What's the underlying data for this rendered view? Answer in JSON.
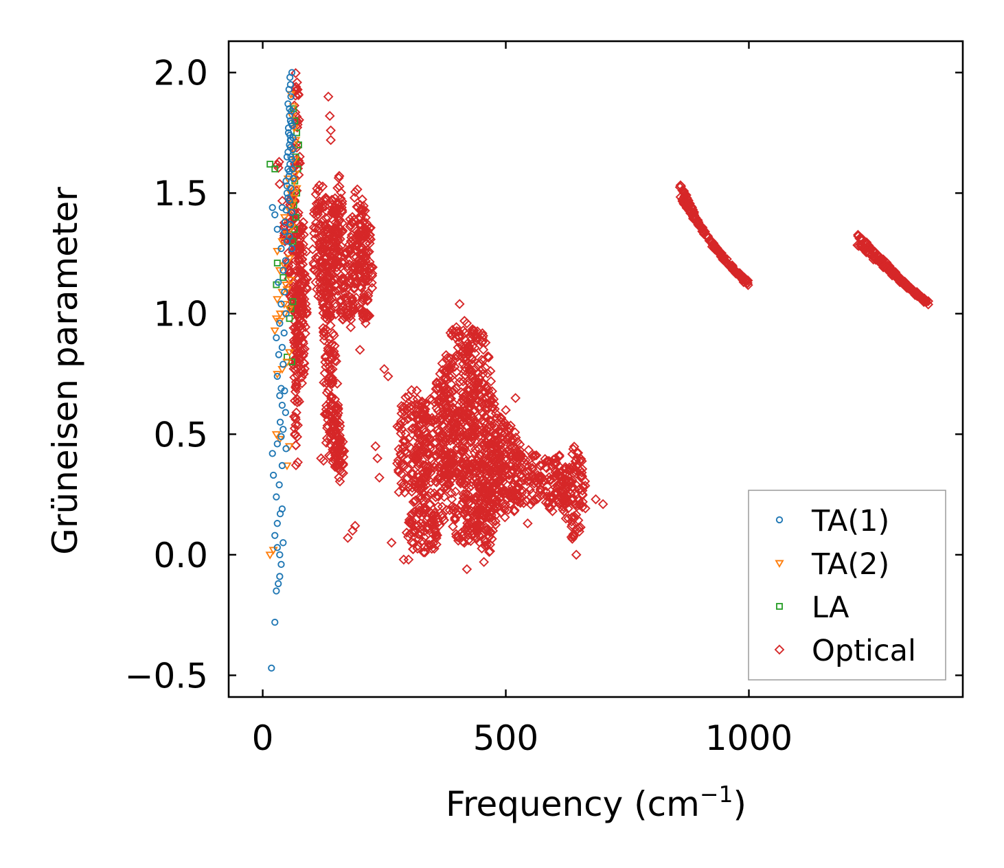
{
  "chart_data": {
    "type": "scatter",
    "title": "",
    "xlabel": "Frequency (cm",
    "xlabel_sup": "−1",
    "xlabel_close": ")",
    "ylabel": "Grüneisen parameter",
    "xlim": [
      -70,
      1440
    ],
    "ylim": [
      -0.59,
      2.13
    ],
    "xticks": [
      0,
      500,
      1000
    ],
    "xtick_labels": [
      "0",
      "500",
      "1000"
    ],
    "yticks": [
      -0.5,
      0.0,
      0.5,
      1.0,
      1.5,
      2.0
    ],
    "ytick_labels": [
      "−0.5",
      "0.0",
      "0.5",
      "1.0",
      "1.5",
      "2.0"
    ],
    "grid": false,
    "legend_position": "bottom-right",
    "series": [
      {
        "name": "TA(1)",
        "marker": "circle",
        "color": "#1f77b4",
        "points": [
          [
            18,
            -0.47
          ],
          [
            25,
            -0.28
          ],
          [
            28,
            -0.15
          ],
          [
            32,
            -0.12
          ],
          [
            35,
            -0.09
          ],
          [
            38,
            -0.04
          ],
          [
            30,
            0.03
          ],
          [
            35,
            0.0
          ],
          [
            42,
            0.05
          ],
          [
            25,
            0.08
          ],
          [
            30,
            0.13
          ],
          [
            36,
            0.17
          ],
          [
            40,
            0.19
          ],
          [
            28,
            0.24
          ],
          [
            34,
            0.29
          ],
          [
            22,
            0.33
          ],
          [
            40,
            0.37
          ],
          [
            20,
            0.42
          ],
          [
            48,
            0.44
          ],
          [
            30,
            0.46
          ],
          [
            38,
            0.49
          ],
          [
            42,
            0.52
          ],
          [
            36,
            0.55
          ],
          [
            47,
            0.59
          ],
          [
            40,
            0.62
          ],
          [
            35,
            0.66
          ],
          [
            45,
            0.68
          ],
          [
            38,
            0.69
          ],
          [
            30,
            0.74
          ],
          [
            42,
            0.79
          ],
          [
            33,
            0.83
          ],
          [
            40,
            0.86
          ],
          [
            28,
            0.9
          ],
          [
            44,
            0.92
          ],
          [
            35,
            0.96
          ],
          [
            48,
            1.0
          ],
          [
            38,
            1.04
          ],
          [
            45,
            1.09
          ],
          [
            32,
            1.13
          ],
          [
            42,
            1.18
          ],
          [
            47,
            1.22
          ],
          [
            38,
            1.27
          ],
          [
            50,
            1.3
          ],
          [
            30,
            1.35
          ],
          [
            20,
            1.44
          ],
          [
            25,
            1.41
          ],
          [
            40,
            1.44
          ],
          [
            50,
            1.5
          ],
          [
            48,
            1.55
          ],
          [
            52,
            1.6
          ],
          [
            50,
            1.65
          ],
          [
            55,
            1.7
          ],
          [
            53,
            1.75
          ],
          [
            57,
            1.8
          ],
          [
            55,
            1.85
          ],
          [
            58,
            1.9
          ],
          [
            57,
            1.95
          ],
          [
            60,
            2.0
          ],
          [
            56,
            1.98
          ],
          [
            54,
            1.93
          ],
          [
            52,
            1.87
          ],
          [
            55,
            1.82
          ],
          [
            53,
            1.77
          ],
          [
            57,
            1.72
          ],
          [
            52,
            1.67
          ],
          [
            56,
            1.62
          ],
          [
            54,
            1.57
          ],
          [
            58,
            1.52
          ],
          [
            55,
            1.47
          ],
          [
            60,
            1.42
          ],
          [
            57,
            1.37
          ],
          [
            55,
            1.32
          ],
          [
            60,
            1.27
          ],
          [
            58,
            1.72
          ],
          [
            61,
            1.78
          ],
          [
            59,
            1.84
          ],
          [
            62,
            1.68
          ],
          [
            61,
            1.6
          ],
          [
            63,
            1.56
          ],
          [
            58,
            1.65
          ],
          [
            56,
            1.74
          ],
          [
            59,
            1.79
          ],
          [
            62,
            1.73
          ],
          [
            57,
            1.69
          ],
          [
            60,
            1.64
          ],
          [
            55,
            1.59
          ],
          [
            50,
            1.53
          ],
          [
            52,
            1.48
          ],
          [
            48,
            1.43
          ],
          [
            46,
            1.38
          ],
          [
            45,
            1.34
          ]
        ]
      },
      {
        "name": "TA(2)",
        "marker": "triangle-down",
        "color": "#ff7f0e",
        "points": [
          [
            15,
            0.0
          ],
          [
            22,
            0.02
          ],
          [
            28,
            0.5
          ],
          [
            35,
            0.48
          ],
          [
            50,
            0.37
          ],
          [
            55,
            0.45
          ],
          [
            30,
            0.75
          ],
          [
            40,
            0.77
          ],
          [
            50,
            0.8
          ],
          [
            55,
            0.84
          ],
          [
            25,
            0.93
          ],
          [
            35,
            0.97
          ],
          [
            45,
            1.0
          ],
          [
            55,
            1.02
          ],
          [
            30,
            1.06
          ],
          [
            40,
            1.09
          ],
          [
            48,
            1.12
          ],
          [
            58,
            1.14
          ],
          [
            35,
            1.18
          ],
          [
            45,
            1.2
          ],
          [
            55,
            1.23
          ],
          [
            30,
            1.26
          ],
          [
            40,
            1.3
          ],
          [
            50,
            1.33
          ],
          [
            60,
            1.36
          ],
          [
            45,
            1.4
          ],
          [
            55,
            1.43
          ],
          [
            62,
            1.46
          ],
          [
            58,
            1.5
          ],
          [
            65,
            1.55
          ],
          [
            60,
            1.6
          ],
          [
            66,
            1.64
          ],
          [
            62,
            1.68
          ],
          [
            68,
            1.72
          ],
          [
            65,
            1.77
          ],
          [
            60,
            1.82
          ],
          [
            63,
            1.86
          ],
          [
            58,
            1.91
          ],
          [
            67,
            1.58
          ],
          [
            70,
            1.52
          ],
          [
            64,
            1.48
          ],
          [
            56,
            1.52
          ],
          [
            52,
            1.56
          ],
          [
            50,
            1.1
          ],
          [
            44,
            1.04
          ],
          [
            36,
            1.0
          ],
          [
            28,
            0.98
          ]
        ]
      },
      {
        "name": "LA",
        "marker": "square",
        "color": "#2ca02c",
        "points": [
          [
            15,
            1.62
          ],
          [
            25,
            1.6
          ],
          [
            30,
            1.21
          ],
          [
            28,
            1.12
          ],
          [
            42,
            1.15
          ],
          [
            60,
            0.8
          ],
          [
            50,
            0.82
          ],
          [
            62,
            1.3
          ],
          [
            65,
            1.35
          ],
          [
            68,
            1.4
          ],
          [
            64,
            1.45
          ],
          [
            70,
            1.5
          ],
          [
            66,
            1.55
          ],
          [
            72,
            1.6
          ],
          [
            68,
            1.65
          ],
          [
            74,
            1.7
          ],
          [
            70,
            1.75
          ],
          [
            66,
            1.8
          ],
          [
            63,
            1.85
          ],
          [
            58,
            1.02
          ],
          [
            62,
            1.05
          ],
          [
            55,
            0.98
          ]
        ]
      },
      {
        "name": "Optical",
        "marker": "diamond",
        "color": "#d62728",
        "blobs": [
          [
            70,
            1.2,
            8,
            0.85
          ],
          [
            82,
            1.05,
            10,
            0.35
          ],
          [
            120,
            1.3,
            18,
            0.25
          ],
          [
            130,
            1.15,
            12,
            0.28
          ],
          [
            145,
            1.2,
            12,
            0.3
          ],
          [
            155,
            1.38,
            10,
            0.2
          ],
          [
            175,
            1.1,
            18,
            0.18
          ],
          [
            195,
            1.3,
            20,
            0.22
          ],
          [
            210,
            1.2,
            18,
            0.25
          ],
          [
            140,
            0.65,
            16,
            0.25
          ],
          [
            150,
            0.5,
            10,
            0.15
          ],
          [
            160,
            0.4,
            8,
            0.1
          ],
          [
            310,
            0.45,
            35,
            0.25
          ],
          [
            360,
            0.42,
            45,
            0.3
          ],
          [
            400,
            0.6,
            40,
            0.35
          ],
          [
            440,
            0.55,
            35,
            0.4
          ],
          [
            470,
            0.4,
            30,
            0.25
          ],
          [
            500,
            0.35,
            35,
            0.2
          ],
          [
            540,
            0.32,
            40,
            0.12
          ],
          [
            600,
            0.3,
            35,
            0.12
          ],
          [
            640,
            0.25,
            25,
            0.2
          ],
          [
            330,
            0.1,
            35,
            0.1
          ],
          [
            420,
            0.15,
            30,
            0.12
          ],
          [
            460,
            0.15,
            20,
            0.15
          ]
        ],
        "streaks": [
          [
            30,
            1.65,
            70,
            0.85
          ],
          [
            55,
            1.5,
            75,
            0.9
          ],
          [
            75,
            1.35,
            80,
            0.95
          ]
        ],
        "curves": [
          [
            [
              860,
              1.53
            ],
            [
              880,
              1.44
            ],
            [
              910,
              1.33
            ],
            [
              950,
              1.22
            ],
            [
              1000,
              1.12
            ]
          ],
          [
            [
              860,
              1.48
            ],
            [
              890,
              1.39
            ],
            [
              930,
              1.28
            ],
            [
              970,
              1.18
            ],
            [
              1000,
              1.13
            ]
          ],
          [
            [
              1225,
              1.32
            ],
            [
              1260,
              1.25
            ],
            [
              1300,
              1.17
            ],
            [
              1340,
              1.09
            ],
            [
              1370,
              1.04
            ]
          ],
          [
            [
              1225,
              1.29
            ],
            [
              1270,
              1.21
            ],
            [
              1310,
              1.14
            ],
            [
              1350,
              1.07
            ],
            [
              1365,
              1.05
            ]
          ]
        ],
        "outliers": [
          [
            135,
            1.9
          ],
          [
            138,
            1.82
          ],
          [
            140,
            1.76
          ],
          [
            140,
            1.72
          ],
          [
            405,
            1.04
          ],
          [
            415,
            0.97
          ],
          [
            420,
            0.96
          ],
          [
            200,
            0.85
          ],
          [
            545,
            0.13
          ],
          [
            265,
            0.05
          ],
          [
            290,
            -0.02
          ],
          [
            300,
            -0.02
          ],
          [
            420,
            -0.06
          ],
          [
            455,
            -0.03
          ],
          [
            645,
            0.0
          ],
          [
            700,
            0.21
          ],
          [
            685,
            0.23
          ],
          [
            175,
            0.07
          ],
          [
            185,
            0.1
          ],
          [
            190,
            0.12
          ],
          [
            150,
            0.37
          ],
          [
            155,
            0.36
          ],
          [
            120,
            0.4
          ],
          [
            125,
            0.39
          ],
          [
            250,
            0.77
          ],
          [
            258,
            0.74
          ],
          [
            232,
            0.45
          ],
          [
            236,
            0.4
          ],
          [
            240,
            0.32
          ],
          [
            280,
            0.26
          ],
          [
            575,
            0.25
          ],
          [
            590,
            0.2
          ],
          [
            620,
            0.18
          ],
          [
            660,
            0.28
          ],
          [
            520,
            0.65
          ],
          [
            500,
            0.6
          ]
        ]
      }
    ]
  }
}
